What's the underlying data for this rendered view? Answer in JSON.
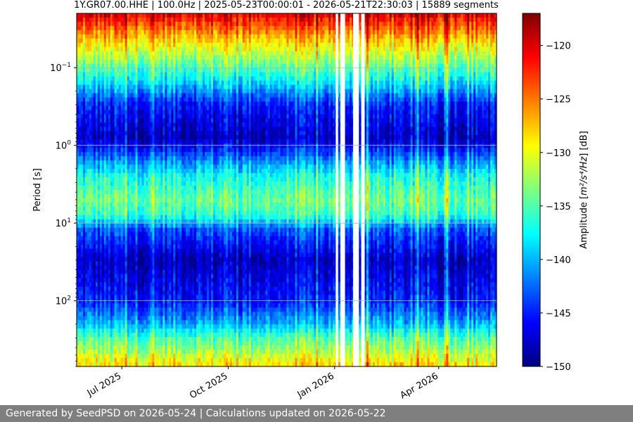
{
  "chart_data": {
    "type": "heatmap",
    "title": "1Y.GR07.00.HHE | 100.0Hz | 2025-05-23T00:00:01 - 2026-05-21T22:30:03 | 15889 segments",
    "ylabel": "Period [s]",
    "y_scale": "log",
    "y_inverted": true,
    "ylim": [
      0.02,
      700
    ],
    "xlim": [
      "2025-05-23",
      "2026-05-21"
    ],
    "x_ticks": [
      {
        "date": "2025-07-01",
        "label": "Jul 2025"
      },
      {
        "date": "2025-10-01",
        "label": "Oct 2025"
      },
      {
        "date": "2026-01-01",
        "label": "Jan 2026"
      },
      {
        "date": "2026-04-01",
        "label": "Apr 2026"
      }
    ],
    "y_ticks": [
      {
        "value": 0.1,
        "base": "10",
        "exp": "−1"
      },
      {
        "value": 1,
        "base": "10",
        "exp": "0"
      },
      {
        "value": 10,
        "base": "10",
        "exp": "1"
      },
      {
        "value": 100,
        "base": "10",
        "exp": "2"
      }
    ],
    "grid": true,
    "colorbar": {
      "label_prefix": "Amplitude [",
      "label_unit": "m²/s⁴/Hz",
      "label_suffix": "] [dB]",
      "colormap": "jet",
      "range": [
        -150,
        -117
      ],
      "ticks": [
        -120,
        -125,
        -130,
        -135,
        -140,
        -145,
        -150
      ]
    },
    "profile": [
      {
        "period": 0.02,
        "db": -120
      },
      {
        "period": 0.03,
        "db": -124
      },
      {
        "period": 0.05,
        "db": -129
      },
      {
        "period": 0.08,
        "db": -133
      },
      {
        "period": 0.15,
        "db": -138
      },
      {
        "period": 0.3,
        "db": -145
      },
      {
        "period": 0.8,
        "db": -148
      },
      {
        "period": 2.5,
        "db": -137
      },
      {
        "period": 5,
        "db": -134
      },
      {
        "period": 8,
        "db": -136
      },
      {
        "period": 12,
        "db": -143
      },
      {
        "period": 30,
        "db": -148
      },
      {
        "period": 100,
        "db": -145
      },
      {
        "period": 200,
        "db": -140
      },
      {
        "period": 300,
        "db": -135
      },
      {
        "period": 400,
        "db": -133
      },
      {
        "period": 700,
        "db": -128
      }
    ],
    "gaps": [
      [
        "2026-01-02",
        "2026-01-04"
      ],
      [
        "2026-01-06",
        "2026-01-10"
      ],
      [
        "2026-01-17",
        "2026-01-22"
      ],
      [
        "2026-01-24",
        "2026-01-27"
      ]
    ]
  },
  "footer": {
    "text": "Generated by SeedPSD on 2026-05-24 | Calculations updated on 2026-05-22"
  }
}
